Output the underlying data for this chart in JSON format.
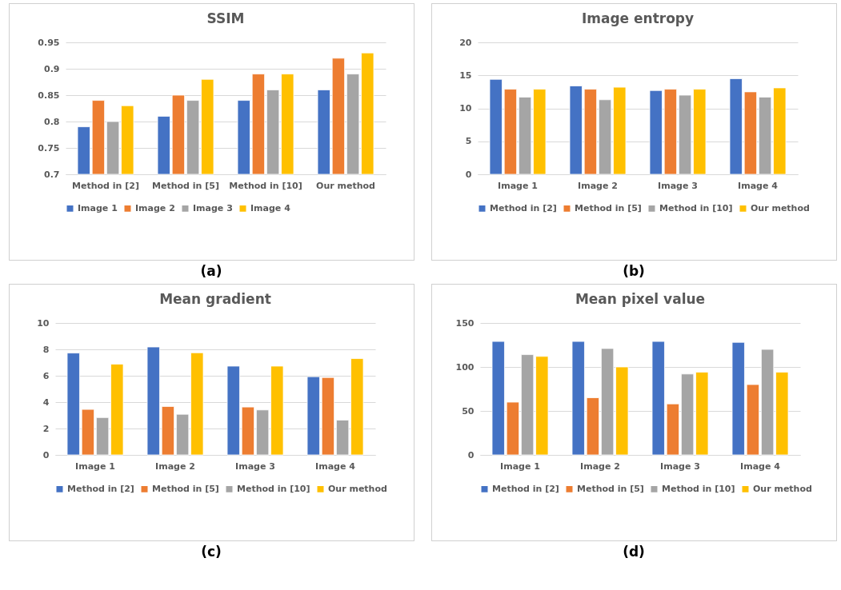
{
  "chart_data": [
    {
      "type": "bar",
      "title": "SSIM",
      "categories": [
        "Method in [2]",
        "Method in [5]",
        "Method in [10]",
        "Our method"
      ],
      "series": [
        {
          "name": "Image 1",
          "color": "#4472c4",
          "values": [
            0.79,
            0.81,
            0.84,
            0.86
          ]
        },
        {
          "name": "Image 2",
          "color": "#ed7d31",
          "values": [
            0.84,
            0.85,
            0.89,
            0.92
          ]
        },
        {
          "name": "Image 3",
          "color": "#a5a5a5",
          "values": [
            0.8,
            0.84,
            0.86,
            0.89
          ]
        },
        {
          "name": "Image 4",
          "color": "#ffc000",
          "values": [
            0.83,
            0.88,
            0.89,
            0.93
          ]
        }
      ],
      "ylim": [
        0.7,
        0.95
      ],
      "yticks": [
        0.7,
        0.75,
        0.8,
        0.85,
        0.9,
        0.95
      ],
      "grid": "y",
      "legend": "bottom",
      "annotations": [
        "(a)"
      ]
    },
    {
      "type": "bar",
      "title": "Image entropy",
      "categories": [
        "Image 1",
        "Image 2",
        "Image 3",
        "Image 4"
      ],
      "series": [
        {
          "name": "Method in [2]",
          "color": "#4472c4",
          "values": [
            14.4,
            13.4,
            12.7,
            14.5
          ]
        },
        {
          "name": "Method in [5]",
          "color": "#ed7d31",
          "values": [
            12.9,
            12.9,
            12.9,
            12.5
          ]
        },
        {
          "name": "Method in [10]",
          "color": "#a5a5a5",
          "values": [
            11.7,
            11.3,
            12.0,
            11.7
          ]
        },
        {
          "name": "Our method",
          "color": "#ffc000",
          "values": [
            12.9,
            13.2,
            12.9,
            13.1
          ]
        }
      ],
      "ylim": [
        0,
        20
      ],
      "yticks": [
        0,
        5,
        10,
        15,
        20
      ],
      "grid": "y",
      "legend": "bottom",
      "annotations": [
        "(b)"
      ]
    },
    {
      "type": "bar",
      "title": "Mean gradient",
      "categories": [
        "Image 1",
        "Image 2",
        "Image 3",
        "Image 4"
      ],
      "series": [
        {
          "name": "Method in [2]",
          "color": "#4472c4",
          "values": [
            7.72,
            8.18,
            6.73,
            5.93
          ]
        },
        {
          "name": "Method in [5]",
          "color": "#ed7d31",
          "values": [
            3.45,
            3.67,
            3.63,
            5.87
          ]
        },
        {
          "name": "Method in [10]",
          "color": "#a5a5a5",
          "values": [
            2.83,
            3.08,
            3.41,
            2.64
          ]
        },
        {
          "name": "Our method",
          "color": "#ffc000",
          "values": [
            6.88,
            7.74,
            6.73,
            7.3
          ]
        }
      ],
      "ylim": [
        0,
        10
      ],
      "yticks": [
        0,
        2,
        4,
        6,
        8,
        10
      ],
      "grid": "y",
      "legend": "bottom",
      "annotations": [
        "(c)"
      ]
    },
    {
      "type": "bar",
      "title": "Mean pixel value",
      "categories": [
        "Image 1",
        "Image 2",
        "Image 3",
        "Image 4"
      ],
      "series": [
        {
          "name": "Method in [2]",
          "color": "#4472c4",
          "values": [
            129,
            129,
            129,
            128
          ]
        },
        {
          "name": "Method in [5]",
          "color": "#ed7d31",
          "values": [
            60,
            65,
            58,
            80
          ]
        },
        {
          "name": "Method in [10]",
          "color": "#a5a5a5",
          "values": [
            114,
            121,
            92,
            120
          ]
        },
        {
          "name": "Our method",
          "color": "#ffc000",
          "values": [
            112,
            100,
            94,
            94
          ]
        }
      ],
      "ylim": [
        0,
        150
      ],
      "yticks": [
        0,
        50,
        100,
        150
      ],
      "grid": "y",
      "legend": "bottom",
      "annotations": [
        "(d)"
      ]
    }
  ]
}
